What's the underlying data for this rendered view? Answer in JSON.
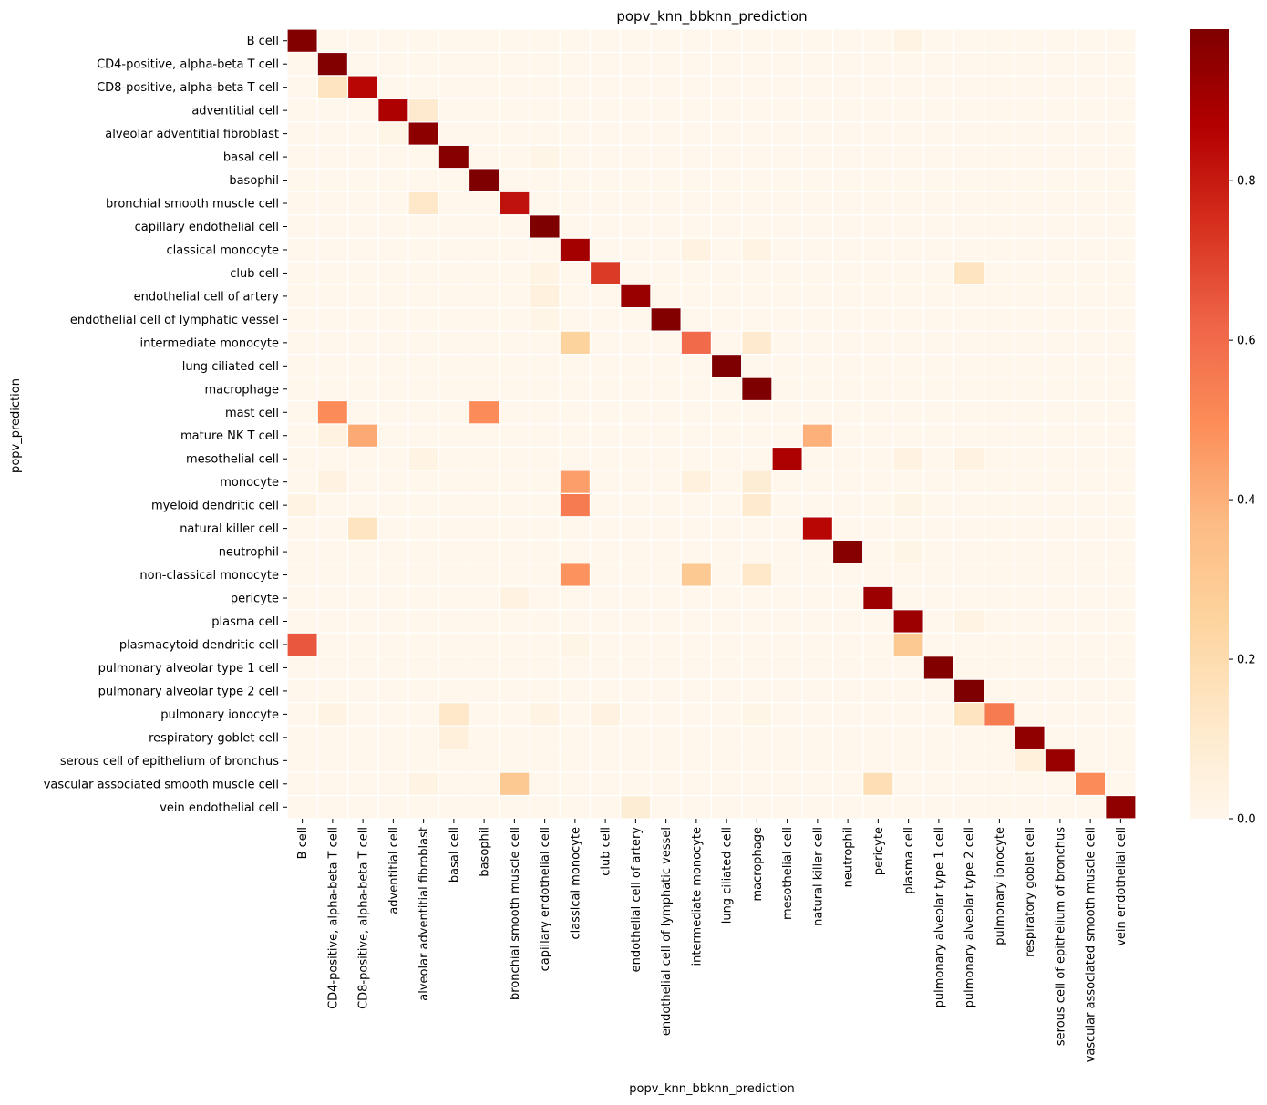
{
  "chart_data": {
    "type": "heatmap",
    "title": "popv_knn_bbknn_prediction",
    "xlabel": "popv_knn_bbknn_prediction",
    "ylabel": "popv_prediction",
    "rows": [
      "B cell",
      "CD4-positive, alpha-beta T cell",
      "CD8-positive, alpha-beta T cell",
      "adventitial cell",
      "alveolar adventitial fibroblast",
      "basal cell",
      "basophil",
      "bronchial smooth muscle cell",
      "capillary endothelial cell",
      "classical monocyte",
      "club cell",
      "endothelial cell of artery",
      "endothelial cell of lymphatic vessel",
      "intermediate monocyte",
      "lung ciliated cell",
      "macrophage",
      "mast cell",
      "mature NK T cell",
      "mesothelial cell",
      "monocyte",
      "myeloid dendritic cell",
      "natural killer cell",
      "neutrophil",
      "non-classical monocyte",
      "pericyte",
      "plasma cell",
      "plasmacytoid dendritic cell",
      "pulmonary alveolar type 1 cell",
      "pulmonary alveolar type 2 cell",
      "pulmonary ionocyte",
      "respiratory goblet cell",
      "serous cell of epithelium of bronchus",
      "vascular associated smooth muscle cell",
      "vein endothelial cell"
    ],
    "columns": [
      "B cell",
      "CD4-positive, alpha-beta T cell",
      "CD8-positive, alpha-beta T cell",
      "adventitial cell",
      "alveolar adventitial fibroblast",
      "basal cell",
      "basophil",
      "bronchial smooth muscle cell",
      "capillary endothelial cell",
      "classical monocyte",
      "club cell",
      "endothelial cell of artery",
      "endothelial cell of lymphatic vessel",
      "intermediate monocyte",
      "lung ciliated cell",
      "macrophage",
      "mesothelial cell",
      "natural killer cell",
      "neutrophil",
      "pericyte",
      "plasma cell",
      "pulmonary alveolar type 1 cell",
      "pulmonary alveolar type 2 cell",
      "pulmonary ionocyte",
      "respiratory goblet cell",
      "serous cell of epithelium of bronchus",
      "vascular associated smooth muscle cell",
      "vein endothelial cell"
    ],
    "values": [
      [
        0.98,
        0,
        0,
        0,
        0,
        0,
        0,
        0,
        0,
        0,
        0,
        0,
        0,
        0,
        0,
        0,
        0,
        0,
        0,
        0,
        0.03,
        0,
        0,
        0,
        0,
        0,
        0,
        0
      ],
      [
        0,
        0.98,
        0,
        0,
        0,
        0,
        0,
        0,
        0,
        0,
        0,
        0,
        0,
        0,
        0,
        0,
        0,
        0,
        0,
        0,
        0,
        0,
        0,
        0,
        0,
        0,
        0,
        0
      ],
      [
        0,
        0.15,
        0.85,
        0,
        0,
        0,
        0,
        0,
        0,
        0,
        0,
        0,
        0,
        0,
        0,
        0,
        0,
        0,
        0,
        0,
        0,
        0,
        0,
        0,
        0,
        0,
        0,
        0
      ],
      [
        0,
        0,
        0,
        0.88,
        0.1,
        0,
        0,
        0,
        0,
        0,
        0,
        0,
        0,
        0,
        0,
        0,
        0,
        0,
        0,
        0,
        0,
        0,
        0,
        0,
        0,
        0,
        0,
        0
      ],
      [
        0,
        0,
        0,
        0.02,
        0.96,
        0,
        0,
        0,
        0,
        0,
        0,
        0,
        0,
        0,
        0,
        0,
        0,
        0,
        0,
        0,
        0,
        0,
        0,
        0,
        0,
        0,
        0,
        0
      ],
      [
        0,
        0,
        0,
        0,
        0,
        0.97,
        0,
        0,
        0.02,
        0,
        0,
        0,
        0,
        0,
        0,
        0,
        0,
        0,
        0,
        0,
        0,
        0,
        0,
        0,
        0,
        0,
        0,
        0
      ],
      [
        0,
        0,
        0,
        0,
        0,
        0,
        0.99,
        0,
        0,
        0,
        0,
        0,
        0,
        0,
        0,
        0,
        0,
        0,
        0,
        0,
        0,
        0,
        0,
        0,
        0,
        0,
        0,
        0
      ],
      [
        0,
        0,
        0,
        0,
        0.12,
        0,
        0,
        0.82,
        0,
        0,
        0,
        0,
        0,
        0,
        0,
        0,
        0,
        0,
        0,
        0,
        0,
        0,
        0,
        0,
        0,
        0,
        0,
        0
      ],
      [
        0,
        0,
        0,
        0,
        0,
        0,
        0,
        0,
        0.99,
        0,
        0,
        0,
        0,
        0,
        0,
        0,
        0,
        0,
        0,
        0,
        0,
        0,
        0,
        0,
        0,
        0,
        0,
        0
      ],
      [
        0,
        0,
        0,
        0,
        0,
        0,
        0,
        0,
        0,
        0.9,
        0,
        0,
        0,
        0.04,
        0,
        0.03,
        0,
        0,
        0,
        0,
        0,
        0,
        0,
        0,
        0,
        0,
        0,
        0
      ],
      [
        0,
        0,
        0,
        0,
        0,
        0,
        0,
        0,
        0.03,
        0,
        0.72,
        0,
        0,
        0,
        0,
        0,
        0,
        0,
        0,
        0,
        0,
        0,
        0.15,
        0,
        0,
        0,
        0,
        0
      ],
      [
        0,
        0,
        0,
        0,
        0,
        0,
        0,
        0,
        0.05,
        0,
        0,
        0.93,
        0,
        0,
        0,
        0,
        0,
        0,
        0,
        0,
        0,
        0,
        0,
        0,
        0,
        0,
        0,
        0
      ],
      [
        0,
        0,
        0,
        0,
        0,
        0,
        0,
        0,
        0.02,
        0,
        0,
        0,
        0.98,
        0,
        0,
        0,
        0,
        0,
        0,
        0,
        0,
        0,
        0,
        0,
        0,
        0,
        0,
        0
      ],
      [
        0,
        0,
        0,
        0,
        0,
        0,
        0,
        0,
        0,
        0.25,
        0,
        0,
        0,
        0.6,
        0,
        0.1,
        0,
        0,
        0,
        0,
        0,
        0,
        0,
        0,
        0,
        0,
        0,
        0
      ],
      [
        0,
        0,
        0,
        0,
        0,
        0,
        0,
        0,
        0,
        0,
        0,
        0,
        0,
        0,
        0.99,
        0,
        0,
        0,
        0,
        0,
        0,
        0,
        0,
        0,
        0,
        0,
        0,
        0
      ],
      [
        0,
        0,
        0,
        0,
        0,
        0,
        0,
        0,
        0,
        0,
        0,
        0,
        0,
        0,
        0,
        0.99,
        0,
        0,
        0,
        0,
        0,
        0,
        0,
        0,
        0,
        0,
        0,
        0
      ],
      [
        0,
        0.5,
        0,
        0,
        0,
        0,
        0.5,
        0,
        0,
        0,
        0,
        0,
        0,
        0,
        0,
        0,
        0,
        0,
        0,
        0,
        0,
        0,
        0,
        0,
        0,
        0,
        0,
        0
      ],
      [
        0,
        0.04,
        0.42,
        0,
        0,
        0,
        0,
        0,
        0,
        0,
        0,
        0,
        0,
        0,
        0,
        0,
        0,
        0.4,
        0,
        0,
        0,
        0,
        0,
        0,
        0,
        0,
        0,
        0
      ],
      [
        0,
        0,
        0,
        0,
        0.03,
        0,
        0,
        0,
        0,
        0,
        0,
        0,
        0,
        0,
        0,
        0,
        0.88,
        0,
        0,
        0,
        0.04,
        0,
        0.04,
        0,
        0,
        0,
        0,
        0
      ],
      [
        0,
        0.04,
        0,
        0,
        0,
        0,
        0,
        0,
        0,
        0.45,
        0,
        0,
        0,
        0.05,
        0,
        0.08,
        0,
        0,
        0,
        0,
        0,
        0,
        0,
        0,
        0,
        0,
        0,
        0
      ],
      [
        0.03,
        0,
        0,
        0,
        0,
        0,
        0,
        0,
        0,
        0.55,
        0,
        0,
        0,
        0,
        0,
        0.1,
        0,
        0,
        0,
        0,
        0.02,
        0,
        0,
        0,
        0,
        0,
        0,
        0
      ],
      [
        0,
        0,
        0.15,
        0,
        0,
        0,
        0,
        0,
        0,
        0,
        0,
        0,
        0,
        0,
        0,
        0,
        0,
        0.85,
        0,
        0,
        0,
        0,
        0,
        0,
        0,
        0,
        0,
        0
      ],
      [
        0,
        0,
        0,
        0,
        0,
        0,
        0,
        0,
        0,
        0,
        0,
        0,
        0,
        0,
        0,
        0,
        0,
        0,
        0.97,
        0,
        0.02,
        0,
        0,
        0,
        0,
        0,
        0,
        0
      ],
      [
        0,
        0,
        0,
        0,
        0,
        0,
        0,
        0,
        0,
        0.48,
        0,
        0,
        0,
        0.3,
        0,
        0.12,
        0,
        0,
        0,
        0,
        0,
        0,
        0,
        0,
        0,
        0,
        0,
        0
      ],
      [
        0,
        0,
        0,
        0,
        0,
        0,
        0,
        0.04,
        0,
        0,
        0,
        0,
        0,
        0,
        0,
        0,
        0,
        0,
        0,
        0.92,
        0,
        0,
        0,
        0,
        0,
        0,
        0,
        0
      ],
      [
        0,
        0,
        0,
        0,
        0,
        0,
        0,
        0,
        0,
        0,
        0,
        0,
        0,
        0,
        0,
        0,
        0,
        0,
        0,
        0,
        0.92,
        0,
        0.03,
        0,
        0,
        0,
        0,
        0
      ],
      [
        0.65,
        0,
        0,
        0,
        0,
        0,
        0,
        0,
        0,
        0.02,
        0,
        0,
        0,
        0,
        0,
        0,
        0,
        0,
        0,
        0,
        0.3,
        0,
        0,
        0,
        0,
        0,
        0,
        0
      ],
      [
        0,
        0,
        0,
        0,
        0,
        0,
        0,
        0,
        0,
        0,
        0,
        0,
        0,
        0,
        0,
        0,
        0,
        0,
        0,
        0,
        0,
        0.98,
        0,
        0,
        0,
        0,
        0,
        0
      ],
      [
        0,
        0,
        0,
        0,
        0,
        0,
        0,
        0,
        0,
        0,
        0,
        0,
        0,
        0,
        0,
        0,
        0,
        0,
        0,
        0,
        0,
        0,
        0.99,
        0,
        0,
        0,
        0,
        0
      ],
      [
        0,
        0.03,
        0,
        0,
        0,
        0.12,
        0,
        0,
        0.03,
        0,
        0.04,
        0,
        0,
        0,
        0,
        0.02,
        0,
        0,
        0,
        0,
        0,
        0,
        0.15,
        0.55,
        0,
        0,
        0,
        0
      ],
      [
        0,
        0,
        0,
        0,
        0,
        0.06,
        0,
        0,
        0,
        0,
        0,
        0,
        0,
        0,
        0,
        0,
        0,
        0,
        0,
        0,
        0,
        0,
        0,
        0,
        0.95,
        0,
        0,
        0
      ],
      [
        0,
        0,
        0,
        0,
        0,
        0,
        0,
        0,
        0,
        0,
        0,
        0,
        0,
        0,
        0,
        0,
        0,
        0,
        0,
        0,
        0,
        0,
        0,
        0,
        0.06,
        0.93,
        0,
        0
      ],
      [
        0,
        0,
        0,
        0,
        0.03,
        0,
        0,
        0.3,
        0,
        0,
        0,
        0,
        0,
        0,
        0,
        0,
        0,
        0,
        0,
        0.18,
        0,
        0,
        0,
        0,
        0,
        0,
        0.5,
        0
      ],
      [
        0,
        0,
        0,
        0,
        0,
        0,
        0,
        0,
        0,
        0,
        0,
        0.08,
        0,
        0,
        0,
        0,
        0,
        0,
        0,
        0,
        0,
        0,
        0,
        0,
        0,
        0,
        0,
        0.95
      ]
    ],
    "vmin": 0,
    "vmax": 0.99,
    "colormap": "OrRd",
    "colorbar_ticks": [
      "0.0",
      "0.2",
      "0.4",
      "0.6",
      "0.8"
    ],
    "colorbar_tick_values": [
      0,
      0.2,
      0.4,
      0.6,
      0.8
    ],
    "grid": true,
    "legend": "colorbar right"
  }
}
